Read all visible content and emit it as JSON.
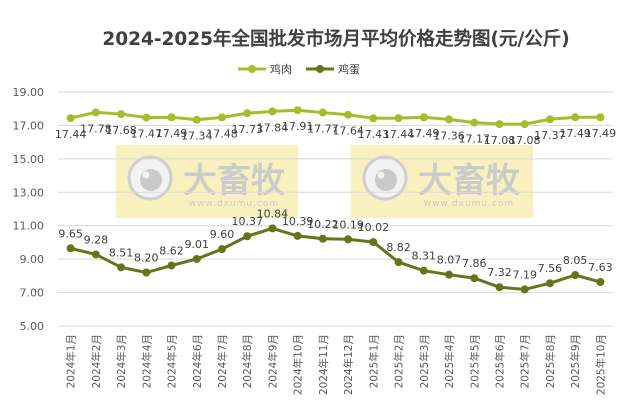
{
  "chart_data": {
    "type": "line",
    "title": "2024-2025年全国批发市场月平均价格走势图(元/公斤)",
    "xlabel": "",
    "ylabel": "",
    "ylim": [
      5,
      19
    ],
    "yticks": [
      "5.00",
      "7.00",
      "9.00",
      "11.00",
      "13.00",
      "15.00",
      "17.00",
      "19.00"
    ],
    "grid": true,
    "legend_position": "top-center",
    "categories": [
      "2024年1月",
      "2024年2月",
      "2024年3月",
      "2024年4月",
      "2024年5月",
      "2024年6月",
      "2024年7月",
      "2024年8月",
      "2024年9月",
      "2024年10月",
      "2024年11月",
      "2024年12月",
      "2025年1月",
      "2025年2月",
      "2025年3月",
      "2025年4月",
      "2025年5月",
      "2025年6月",
      "2025年7月",
      "2025年8月",
      "2025年9月",
      "2025年10月"
    ],
    "series": [
      {
        "name": "鸡肉",
        "color": "#a8bc2a",
        "label_position": "below",
        "values": [
          17.44,
          17.78,
          17.68,
          17.47,
          17.49,
          17.34,
          17.48,
          17.73,
          17.84,
          17.91,
          17.77,
          17.64,
          17.43,
          17.44,
          17.49,
          17.36,
          17.17,
          17.08,
          17.08,
          17.37,
          17.49,
          17.49
        ]
      },
      {
        "name": "鸡蛋",
        "color": "#66741a",
        "label_position": "above",
        "values": [
          9.65,
          9.28,
          8.51,
          8.2,
          8.62,
          9.01,
          9.6,
          10.37,
          10.84,
          10.39,
          10.22,
          10.19,
          10.02,
          8.82,
          8.31,
          8.07,
          7.86,
          7.32,
          7.19,
          7.56,
          8.05,
          7.63
        ]
      }
    ]
  },
  "watermark": {
    "brand": "大畜牧",
    "url": "www.dxumu.com"
  }
}
